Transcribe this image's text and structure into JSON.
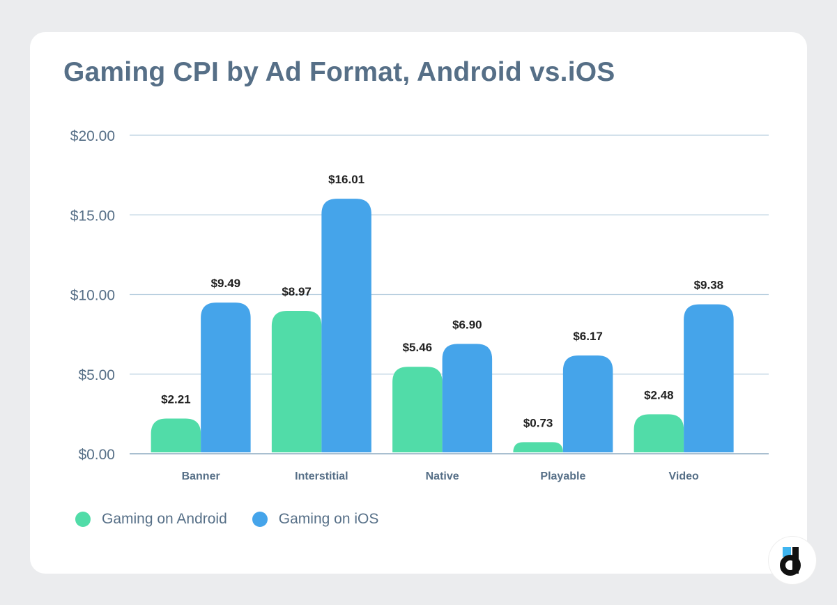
{
  "title": "Gaming CPI by Ad Format, Android vs.iOS",
  "legend": [
    {
      "label": "Gaming on Android",
      "color": "#51dca8"
    },
    {
      "label": "Gaming on iOS",
      "color": "#45a4ea"
    }
  ],
  "logo": {
    "name": "devtodev-logo",
    "glyph": "d",
    "accent": "#3fb5f0"
  },
  "chart_data": {
    "type": "bar",
    "title": "Gaming CPI by Ad Format, Android vs.iOS",
    "xlabel": "",
    "ylabel": "",
    "categories": [
      "Banner",
      "Interstitial",
      "Native",
      "Playable",
      "Video"
    ],
    "series": [
      {
        "name": "Gaming on Android",
        "color": "#51dca8",
        "values": [
          2.21,
          8.97,
          5.46,
          0.73,
          2.48
        ],
        "labels": [
          "$2.21",
          "$8.97",
          "$5.46",
          "$0.73",
          "$2.48"
        ]
      },
      {
        "name": "Gaming on iOS",
        "color": "#45a4ea",
        "values": [
          9.49,
          16.01,
          6.9,
          6.17,
          9.38
        ],
        "labels": [
          "$9.49",
          "$16.01",
          "$6.90",
          "$6.17",
          "$9.38"
        ]
      }
    ],
    "ylim": [
      0,
      20
    ],
    "yticks": [
      0,
      5,
      10,
      15,
      20
    ],
    "ytick_labels": [
      "$0.00",
      "$5.00",
      "$10.00",
      "$15.00",
      "$20.00"
    ],
    "grid": true,
    "legend_position": "bottom-left",
    "data_labels": true
  }
}
